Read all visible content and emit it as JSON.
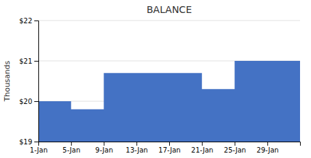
{
  "chart_data": {
    "type": "area",
    "title": "BALANCE",
    "y_label": "Thousands",
    "x": [
      1,
      5,
      5,
      9,
      9,
      17,
      17,
      21,
      21,
      25,
      25,
      29,
      29,
      33
    ],
    "values": [
      20.0,
      20.0,
      19.8,
      19.8,
      20.7,
      20.7,
      20.7,
      20.7,
      20.3,
      20.3,
      21.0,
      21.0,
      21.0,
      21.0
    ],
    "color": "#4472C4",
    "xlim": [
      1,
      33
    ],
    "xticks": [
      {
        "value": 1,
        "label": "1-Jan"
      },
      {
        "value": 5,
        "label": "5-Jan"
      },
      {
        "value": 9,
        "label": "9-Jan"
      },
      {
        "value": 13,
        "label": "13-Jan"
      },
      {
        "value": 17,
        "label": "17-Jan"
      },
      {
        "value": 21,
        "label": "21-Jan"
      },
      {
        "value": 25,
        "label": "25-Jan"
      },
      {
        "value": 29,
        "label": "29-Jan"
      }
    ],
    "ylim": [
      19,
      22
    ],
    "yticks": [
      {
        "value": 19,
        "label": "$19"
      },
      {
        "value": 20,
        "label": "$20"
      },
      {
        "value": 21,
        "label": "$21"
      },
      {
        "value": 22,
        "label": "$22"
      }
    ],
    "grid": true
  }
}
